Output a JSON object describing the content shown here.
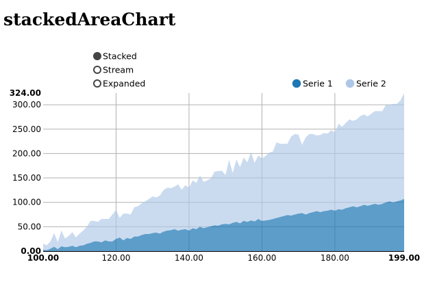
{
  "title": "stackedAreaChart",
  "controls": {
    "options": [
      {
        "label": "Stacked",
        "selected": true
      },
      {
        "label": "Stream",
        "selected": false
      },
      {
        "label": "Expanded",
        "selected": false
      }
    ]
  },
  "colors": {
    "serie1": "#1f77b4",
    "serie2": "#aec7e8",
    "grid": "#b0b0b0",
    "axis": "#000000"
  },
  "chart_data": {
    "type": "area",
    "stacked": true,
    "title": "",
    "xlabel": "",
    "ylabel": "",
    "xlim": [
      100,
      199
    ],
    "ylim": [
      0,
      324
    ],
    "x_ticks": [
      "100.00",
      "120.00",
      "140.00",
      "160.00",
      "180.00",
      "199.00"
    ],
    "x_tick_values": [
      100,
      120,
      140,
      160,
      180,
      199
    ],
    "y_ticks": [
      "0.00",
      "50.00",
      "100.00",
      "150.00",
      "200.00",
      "250.00",
      "300.00",
      "324.00"
    ],
    "y_tick_values": [
      0,
      50,
      100,
      150,
      200,
      250,
      300,
      324
    ],
    "grid": true,
    "legend_position": "top-right",
    "x": [
      100,
      101,
      102,
      103,
      104,
      105,
      106,
      107,
      108,
      109,
      110,
      111,
      112,
      113,
      114,
      115,
      116,
      117,
      118,
      119,
      120,
      121,
      122,
      123,
      124,
      125,
      126,
      127,
      128,
      129,
      130,
      131,
      132,
      133,
      134,
      135,
      136,
      137,
      138,
      139,
      140,
      141,
      142,
      143,
      144,
      145,
      146,
      147,
      148,
      149,
      150,
      151,
      152,
      153,
      154,
      155,
      156,
      157,
      158,
      159,
      160,
      161,
      162,
      163,
      164,
      165,
      166,
      167,
      168,
      169,
      170,
      171,
      172,
      173,
      174,
      175,
      176,
      177,
      178,
      179,
      180,
      181,
      182,
      183,
      184,
      185,
      186,
      187,
      188,
      189,
      190,
      191,
      192,
      193,
      194,
      195,
      196,
      197,
      198,
      199
    ],
    "series": [
      {
        "name": "Serie 1",
        "values": [
          3,
          2,
          5,
          9,
          4,
          10,
          8,
          9,
          11,
          8,
          11,
          12,
          15,
          17,
          20,
          20,
          18,
          22,
          20,
          20,
          25,
          28,
          22,
          27,
          25,
          30,
          30,
          33,
          35,
          35,
          37,
          38,
          36,
          40,
          42,
          43,
          45,
          42,
          44,
          45,
          42,
          47,
          45,
          50,
          47,
          49,
          51,
          53,
          52,
          55,
          56,
          55,
          58,
          60,
          57,
          62,
          60,
          63,
          61,
          66,
          62,
          63,
          64,
          66,
          68,
          70,
          72,
          74,
          73,
          75,
          77,
          78,
          75,
          78,
          80,
          82,
          80,
          82,
          83,
          85,
          83,
          86,
          85,
          88,
          90,
          92,
          90,
          92,
          95,
          93,
          95,
          97,
          95,
          97,
          100,
          102,
          100,
          102,
          104,
          107
        ]
      },
      {
        "name": "Serie 2",
        "values": [
          12,
          10,
          15,
          28,
          14,
          32,
          18,
          22,
          28,
          20,
          25,
          30,
          35,
          45,
          42,
          40,
          48,
          44,
          46,
          55,
          60,
          40,
          55,
          50,
          50,
          60,
          62,
          65,
          67,
          72,
          75,
          72,
          78,
          85,
          88,
          86,
          87,
          95,
          82,
          90,
          88,
          98,
          95,
          105,
          95,
          96,
          98,
          110,
          112,
          110,
          100,
          132,
          102,
          128,
          115,
          130,
          122,
          140,
          120,
          130,
          128,
          132,
          138,
          138,
          155,
          150,
          148,
          146,
          162,
          165,
          162,
          140,
          158,
          162,
          160,
          155,
          158,
          160,
          158,
          163,
          160,
          175,
          170,
          175,
          180,
          175,
          180,
          185,
          185,
          183,
          187,
          190,
          192,
          190,
          200,
          198,
          202,
          200,
          205,
          217
        ]
      }
    ]
  }
}
